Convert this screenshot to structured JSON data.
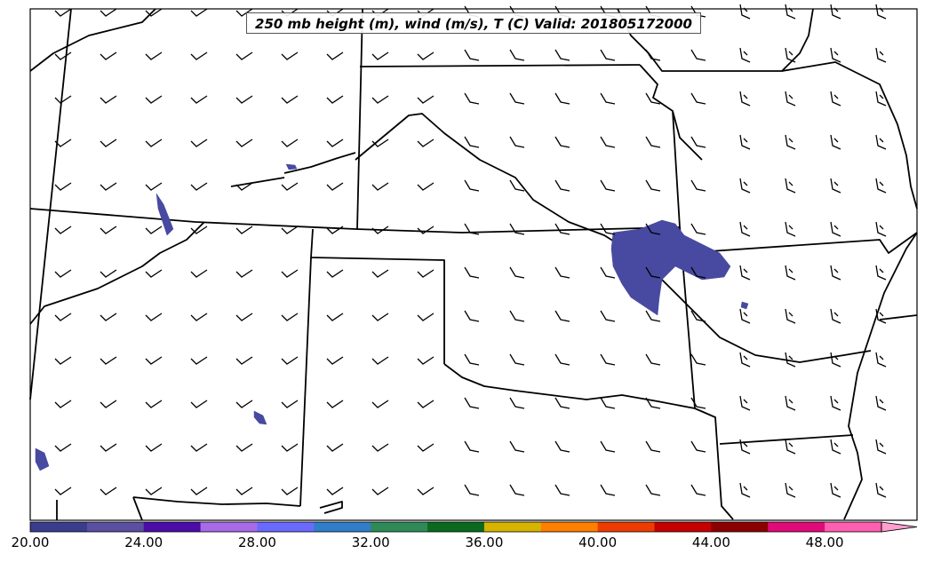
{
  "title": "250 mb height (m), wind (m/s), T (C) Valid: 201805172000",
  "colorbar": {
    "tick_labels": [
      "20.00",
      "24.00",
      "28.00",
      "32.00",
      "36.00",
      "40.00",
      "44.00",
      "48.00"
    ],
    "colors": [
      "#3a3c8e",
      "#5a4fa0",
      "#4b0ca8",
      "#a86ae8",
      "#6a6aff",
      "#2f7ec9",
      "#2e8b57",
      "#0a6a1e",
      "#d7b400",
      "#ff7f00",
      "#ee3b00",
      "#c40000",
      "#8b0000",
      "#e00a78",
      "#ff5fb0",
      "#ff9fd0"
    ]
  },
  "colors": {
    "fill": "#474aa0",
    "border": "#000000"
  }
}
